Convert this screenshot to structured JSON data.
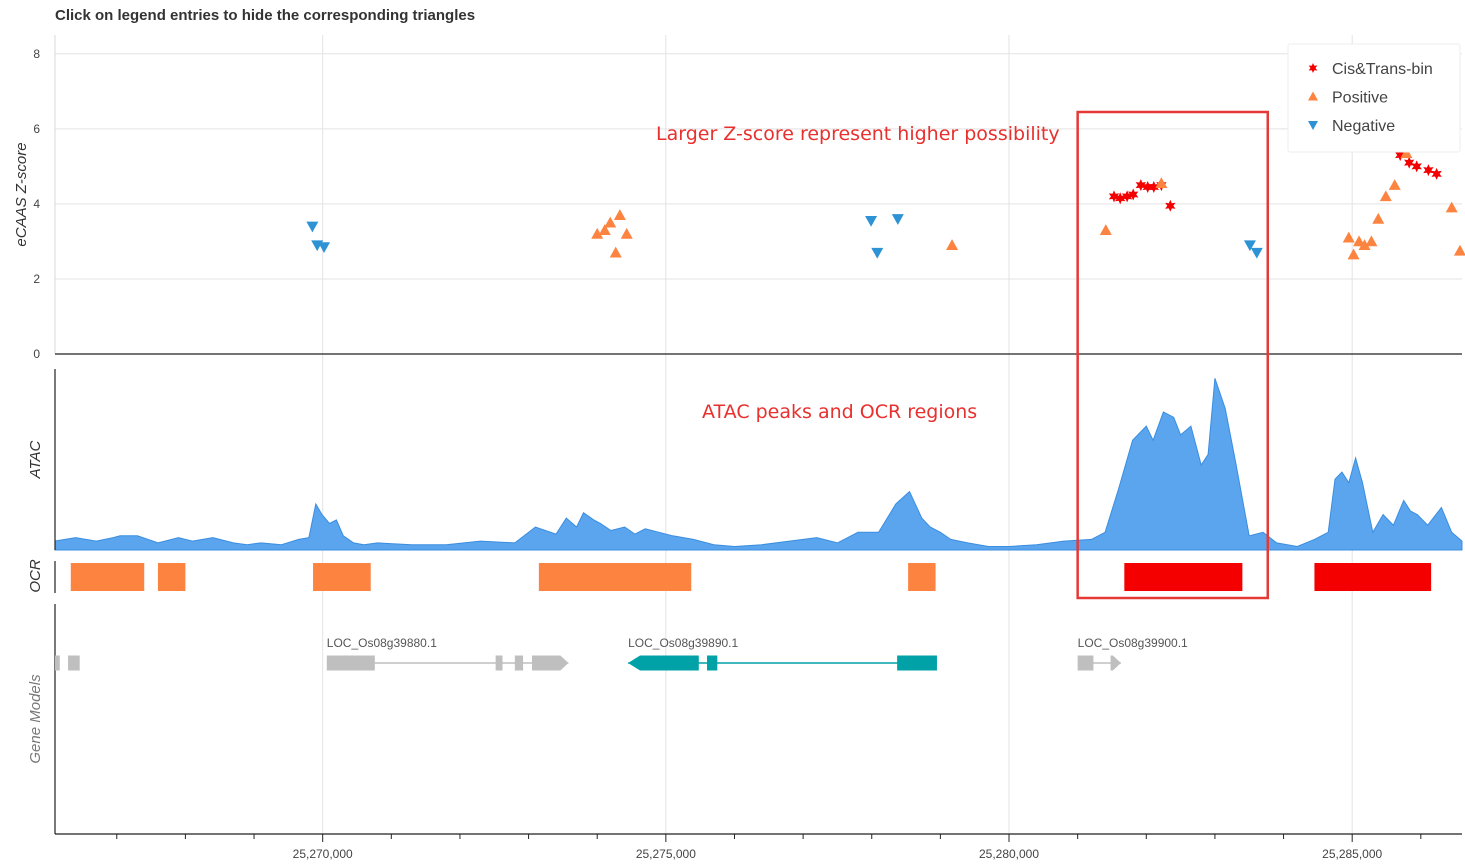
{
  "header": {
    "title": "Click on legend entries to hide the corresponding triangles"
  },
  "colors": {
    "cis_trans": "#f40000",
    "positive": "#fd8440",
    "negative": "#2e93d4",
    "atac_fill": "#5aa5ee",
    "atac_line": "#3b8de0",
    "ocr_orange": "#fd8440",
    "ocr_red": "#f40000",
    "gene_gray": "#bfbfbf",
    "gene_teal": "#00a2a8",
    "highlight_box": "#e53935",
    "annotation_text": "#e8302e"
  },
  "annotations": {
    "zscore_note": "Larger Z-score represent higher possibility",
    "atac_note": "ATAC peaks and OCR regions"
  },
  "chart_data": {
    "type": "scatter",
    "x_axis": {
      "min": 25266100,
      "max": 25286600,
      "ticks": [
        25270000,
        25275000,
        25280000,
        25285000
      ],
      "tick_labels": [
        "25,270,000",
        "25,275,000",
        "25,280,000",
        "25,285,000"
      ]
    },
    "zscore_track": {
      "ylabel": "eCAAS Z-score",
      "ylim": [
        0,
        8.5
      ],
      "yticks": [
        0,
        2,
        4,
        6,
        8
      ],
      "legend_position": "top-right",
      "series": [
        {
          "name": "Cis&Trans-bin",
          "marker": "star",
          "points": [
            [
              25281530,
              4.2
            ],
            [
              25281620,
              4.15
            ],
            [
              25281720,
              4.2
            ],
            [
              25281810,
              4.25
            ],
            [
              25281920,
              4.5
            ],
            [
              25282020,
              4.45
            ],
            [
              25282110,
              4.45
            ],
            [
              25282220,
              4.5
            ],
            [
              25282350,
              3.95
            ],
            [
              25285700,
              5.3
            ],
            [
              25285830,
              5.1
            ],
            [
              25285940,
              5.0
            ],
            [
              25286110,
              4.9
            ],
            [
              25286230,
              4.8
            ]
          ]
        },
        {
          "name": "Positive",
          "marker": "triangle-up",
          "points": [
            [
              25274000,
              3.2
            ],
            [
              25274110,
              3.3
            ],
            [
              25274190,
              3.5
            ],
            [
              25274330,
              3.7
            ],
            [
              25274430,
              3.2
            ],
            [
              25274270,
              2.7
            ],
            [
              25279170,
              2.9
            ],
            [
              25281410,
              3.3
            ],
            [
              25282220,
              4.55
            ],
            [
              25284950,
              3.1
            ],
            [
              25285020,
              2.65
            ],
            [
              25285100,
              3.0
            ],
            [
              25285180,
              2.9
            ],
            [
              25285280,
              3.0
            ],
            [
              25285380,
              3.6
            ],
            [
              25285490,
              4.2
            ],
            [
              25285620,
              4.5
            ],
            [
              25285790,
              5.35
            ],
            [
              25286150,
              5.5
            ],
            [
              25286450,
              3.9
            ],
            [
              25286570,
              2.75
            ]
          ]
        },
        {
          "name": "Negative",
          "marker": "triangle-down",
          "points": [
            [
              25269850,
              3.4
            ],
            [
              25269920,
              2.9
            ],
            [
              25270020,
              2.85
            ],
            [
              25277990,
              3.55
            ],
            [
              25278080,
              2.7
            ],
            [
              25278380,
              3.6
            ],
            [
              25283510,
              2.9
            ],
            [
              25283610,
              2.7
            ]
          ]
        }
      ]
    },
    "atac_track": {
      "ylabel": "ATAC",
      "ylim": [
        0,
        100
      ],
      "x": [
        25266100,
        25266400,
        25266700,
        25266950,
        25267050,
        25267300,
        25267600,
        25267900,
        25268100,
        25268400,
        25268700,
        25268900,
        25269100,
        25269400,
        25269650,
        25269800,
        25269900,
        25269990,
        25270100,
        25270200,
        25270300,
        25270450,
        25270600,
        25270800,
        25271300,
        25271800,
        25272300,
        25272800,
        25273100,
        25273400,
        25273550,
        25273700,
        25273800,
        25273950,
        25274050,
        25274200,
        25274400,
        25274550,
        25274700,
        25274900,
        25275100,
        25275400,
        25275700,
        25276000,
        25276400,
        25276800,
        25277200,
        25277500,
        25277800,
        25278100,
        25278350,
        25278550,
        25278730,
        25278850,
        25279000,
        25279150,
        25279400,
        25279700,
        25280000,
        25280400,
        25280800,
        25281200,
        25281400,
        25281600,
        25281800,
        25282000,
        25282100,
        25282250,
        25282400,
        25282500,
        25282650,
        25282800,
        25282900,
        25283000,
        25283150,
        25283300,
        25283500,
        25283700,
        25283900,
        25284200,
        25284450,
        25284650,
        25284750,
        25284850,
        25284950,
        25285050,
        25285150,
        25285300,
        25285450,
        25285600,
        25285750,
        25285850,
        25285950,
        25286100,
        25286300,
        25286450,
        25286600
      ],
      "y": [
        5,
        7,
        5,
        7,
        8,
        8,
        4,
        7,
        5,
        7,
        4,
        3,
        4,
        3,
        6,
        7,
        26,
        20,
        15,
        17,
        8,
        4,
        3,
        4,
        3,
        3,
        5,
        4,
        13,
        9,
        18,
        13,
        21,
        17,
        15,
        11,
        13,
        9,
        12,
        10,
        8,
        6,
        3,
        2,
        3,
        5,
        7,
        4,
        10,
        10,
        26,
        33,
        18,
        13,
        10,
        6,
        4,
        2,
        2,
        3,
        5,
        6,
        10,
        35,
        62,
        70,
        62,
        78,
        75,
        65,
        70,
        48,
        54,
        97,
        80,
        50,
        8,
        10,
        4,
        2,
        6,
        10,
        40,
        44,
        38,
        52,
        38,
        10,
        20,
        14,
        28,
        22,
        20,
        14,
        24,
        10,
        5
      ]
    },
    "ocr_track": {
      "ylabel": "OCR",
      "regions": [
        {
          "start": 25266330,
          "end": 25267400,
          "class": "orange"
        },
        {
          "start": 25267600,
          "end": 25268000,
          "class": "orange"
        },
        {
          "start": 25269860,
          "end": 25270700,
          "class": "orange"
        },
        {
          "start": 25273150,
          "end": 25275370,
          "class": "orange"
        },
        {
          "start": 25278530,
          "end": 25278930,
          "class": "orange"
        },
        {
          "start": 25281680,
          "end": 25283400,
          "class": "red"
        },
        {
          "start": 25284450,
          "end": 25286150,
          "class": "red"
        }
      ]
    },
    "gene_track": {
      "ylabel": "Gene Models",
      "genes": [
        {
          "label": "",
          "strand": "+",
          "color": "gray",
          "exons": [
            [
              25266100,
              25266170
            ],
            [
              25266290,
              25266460
            ]
          ],
          "arrow": false
        },
        {
          "label": "LOC_Os08g39880.1",
          "strand": "+",
          "color": "gray",
          "start": 25270060,
          "end": 25273580,
          "exons": [
            [
              25270060,
              25270760
            ],
            [
              25272520,
              25272620
            ],
            [
              25272800,
              25272920
            ],
            [
              25273050,
              25273580
            ]
          ],
          "arrow": true
        },
        {
          "label": "LOC_Os08g39890.1",
          "strand": "-",
          "color": "teal",
          "start": 25274450,
          "end": 25278950,
          "exons": [
            [
              25274450,
              25275480
            ],
            [
              25275600,
              25275750
            ],
            [
              25278370,
              25278950
            ]
          ],
          "arrow": true
        },
        {
          "label": "LOC_Os08g39900.1",
          "strand": "+",
          "color": "gray",
          "start": 25281000,
          "end": 25281630,
          "exons": [
            [
              25281000,
              25281230
            ],
            [
              25281480,
              25281630
            ]
          ],
          "arrow": true
        }
      ]
    },
    "highlight_box": {
      "x_start": 25281000,
      "x_end": 25283770
    },
    "grid": true
  }
}
